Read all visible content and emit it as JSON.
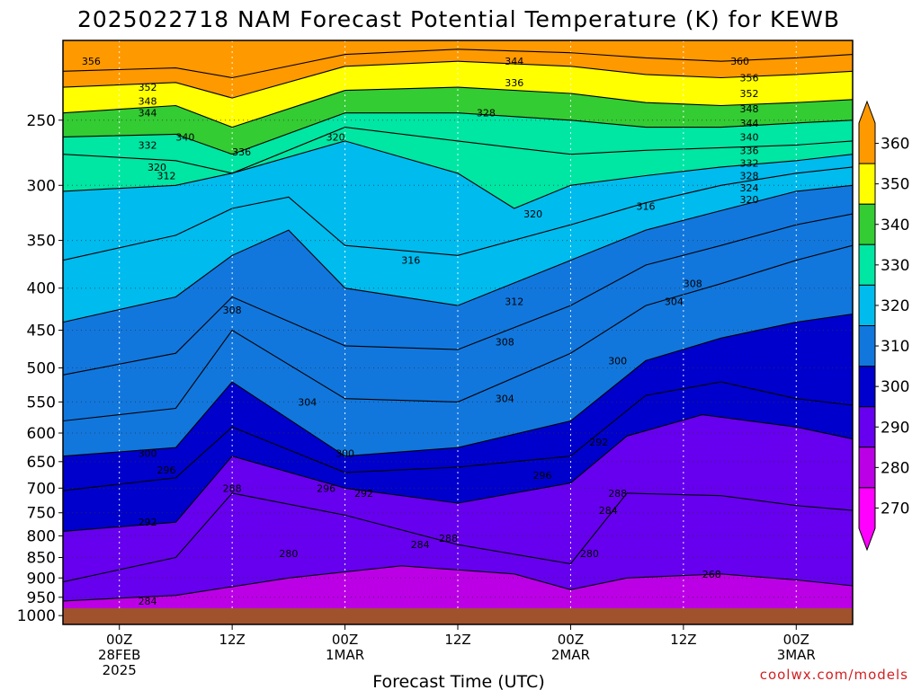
{
  "chart_data": {
    "type": "heatmap",
    "title": "2025022718 NAM Forecast Potential Temperature (K) for KEWB",
    "xlabel": "Forecast Time (UTC)",
    "ylabel": "",
    "credit": "coolwx.com/models",
    "y_axis": {
      "scale": "pressure",
      "orientation": "reversed",
      "ticks": [
        250,
        300,
        350,
        400,
        450,
        500,
        550,
        600,
        650,
        700,
        750,
        800,
        850,
        900,
        950,
        1000
      ],
      "ylim": [
        1025,
        200
      ],
      "grid": true
    },
    "x_axis": {
      "xlim_hours": [
        -6,
        78
      ],
      "ticks": [
        {
          "hour": 0,
          "lines": [
            "00Z",
            "28FEB",
            "2025"
          ]
        },
        {
          "hour": 12,
          "lines": [
            "12Z"
          ]
        },
        {
          "hour": 24,
          "lines": [
            "00Z",
            "1MAR"
          ]
        },
        {
          "hour": 36,
          "lines": [
            "12Z"
          ]
        },
        {
          "hour": 48,
          "lines": [
            "00Z",
            "2MAR"
          ]
        },
        {
          "hour": 60,
          "lines": [
            "12Z"
          ]
        },
        {
          "hour": 72,
          "lines": [
            "00Z",
            "3MAR"
          ]
        }
      ],
      "grid": true
    },
    "colorbar": {
      "labels": [
        "360",
        "350",
        "340",
        "330",
        "320",
        "310",
        "300",
        "290",
        "280",
        "270"
      ],
      "bands": [
        {
          "range": [
            350,
            360
          ],
          "color": "#ff9900"
        },
        {
          "range": [
            340,
            350
          ],
          "color": "#ffff00"
        },
        {
          "range": [
            330,
            340
          ],
          "color": "#33cc33"
        },
        {
          "range": [
            320,
            330
          ],
          "color": "#00e6a3"
        },
        {
          "range": [
            310,
            320
          ],
          "color": "#00bbee"
        },
        {
          "range": [
            300,
            310
          ],
          "color": "#1177dd"
        },
        {
          "range": [
            290,
            300
          ],
          "color": "#0000cc"
        },
        {
          "range": [
            280,
            290
          ],
          "color": "#6600ee"
        },
        {
          "range": [
            270,
            280
          ],
          "color": "#bb00e6"
        },
        {
          "range": [
            260,
            270
          ],
          "color": "#ff00ff"
        }
      ]
    },
    "isentropes": [
      {
        "theta": 284,
        "points": [
          [
            -6,
            960
          ],
          [
            6,
            945
          ],
          [
            18,
            900
          ],
          [
            30,
            870
          ],
          [
            42,
            890
          ],
          [
            48,
            930
          ],
          [
            54,
            900
          ],
          [
            64,
            890
          ],
          [
            72,
            905
          ],
          [
            78,
            920
          ]
        ]
      },
      {
        "theta": 288,
        "points": [
          [
            -6,
            910
          ],
          [
            6,
            850
          ],
          [
            12,
            710
          ],
          [
            24,
            755
          ],
          [
            36,
            820
          ],
          [
            48,
            865
          ],
          [
            54,
            710
          ],
          [
            64,
            715
          ],
          [
            72,
            735
          ],
          [
            78,
            745
          ]
        ]
      },
      {
        "theta": 292,
        "points": [
          [
            -6,
            790
          ],
          [
            6,
            770
          ],
          [
            12,
            640
          ],
          [
            24,
            700
          ],
          [
            36,
            730
          ],
          [
            48,
            690
          ],
          [
            54,
            605
          ],
          [
            62,
            570
          ],
          [
            72,
            590
          ],
          [
            78,
            610
          ]
        ]
      },
      {
        "theta": 296,
        "points": [
          [
            -6,
            705
          ],
          [
            6,
            680
          ],
          [
            12,
            590
          ],
          [
            24,
            670
          ],
          [
            36,
            660
          ],
          [
            48,
            640
          ],
          [
            56,
            540
          ],
          [
            64,
            520
          ],
          [
            72,
            545
          ],
          [
            78,
            555
          ]
        ]
      },
      {
        "theta": 300,
        "points": [
          [
            -6,
            640
          ],
          [
            6,
            625
          ],
          [
            12,
            520
          ],
          [
            24,
            640
          ],
          [
            36,
            625
          ],
          [
            48,
            580
          ],
          [
            56,
            490
          ],
          [
            64,
            460
          ],
          [
            72,
            440
          ],
          [
            78,
            430
          ]
        ]
      },
      {
        "theta": 304,
        "points": [
          [
            -6,
            580
          ],
          [
            6,
            560
          ],
          [
            12,
            450
          ],
          [
            24,
            545
          ],
          [
            36,
            550
          ],
          [
            48,
            480
          ],
          [
            56,
            420
          ],
          [
            64,
            395
          ],
          [
            72,
            370
          ],
          [
            78,
            355
          ]
        ]
      },
      {
        "theta": 308,
        "points": [
          [
            -6,
            510
          ],
          [
            6,
            480
          ],
          [
            12,
            410
          ],
          [
            24,
            470
          ],
          [
            36,
            475
          ],
          [
            48,
            420
          ],
          [
            56,
            375
          ],
          [
            64,
            355
          ],
          [
            72,
            335
          ],
          [
            78,
            325
          ]
        ]
      },
      {
        "theta": 312,
        "points": [
          [
            -6,
            440
          ],
          [
            6,
            410
          ],
          [
            12,
            365
          ],
          [
            18,
            340
          ],
          [
            24,
            400
          ],
          [
            36,
            420
          ],
          [
            48,
            370
          ],
          [
            56,
            340
          ],
          [
            64,
            322
          ],
          [
            72,
            305
          ],
          [
            78,
            300
          ]
        ]
      },
      {
        "theta": 316,
        "points": [
          [
            -6,
            370
          ],
          [
            6,
            345
          ],
          [
            12,
            320
          ],
          [
            18,
            310
          ],
          [
            24,
            355
          ],
          [
            36,
            365
          ],
          [
            48,
            335
          ],
          [
            56,
            315
          ],
          [
            64,
            300
          ],
          [
            72,
            290
          ],
          [
            78,
            285
          ]
        ]
      },
      {
        "theta": 320,
        "points": [
          [
            -6,
            305
          ],
          [
            6,
            300
          ],
          [
            12,
            290
          ],
          [
            24,
            265
          ],
          [
            36,
            290
          ],
          [
            42,
            320
          ],
          [
            48,
            300
          ],
          [
            56,
            292
          ],
          [
            64,
            285
          ],
          [
            72,
            280
          ],
          [
            78,
            275
          ]
        ]
      },
      {
        "theta": 328,
        "points": [
          [
            -6,
            275
          ],
          [
            6,
            280
          ],
          [
            12,
            290
          ],
          [
            24,
            255
          ],
          [
            36,
            265
          ],
          [
            42,
            270
          ],
          [
            48,
            275
          ],
          [
            56,
            272
          ],
          [
            64,
            270
          ],
          [
            72,
            268
          ],
          [
            78,
            265
          ]
        ]
      },
      {
        "theta": 336,
        "points": [
          [
            -6,
            262
          ],
          [
            6,
            260
          ],
          [
            12,
            275
          ],
          [
            24,
            245
          ],
          [
            36,
            245
          ],
          [
            48,
            250
          ],
          [
            56,
            255
          ],
          [
            64,
            255
          ],
          [
            72,
            252
          ],
          [
            78,
            250
          ]
        ]
      },
      {
        "theta": 344,
        "points": [
          [
            -6,
            245
          ],
          [
            6,
            240
          ],
          [
            12,
            255
          ],
          [
            24,
            230
          ],
          [
            36,
            228
          ],
          [
            48,
            232
          ],
          [
            56,
            238
          ],
          [
            64,
            240
          ],
          [
            72,
            238
          ],
          [
            78,
            236
          ]
        ]
      },
      {
        "theta": 352,
        "points": [
          [
            -6,
            228
          ],
          [
            6,
            225
          ],
          [
            12,
            235
          ],
          [
            24,
            215
          ],
          [
            36,
            212
          ],
          [
            48,
            215
          ],
          [
            56,
            220
          ],
          [
            64,
            222
          ],
          [
            72,
            220
          ],
          [
            78,
            218
          ]
        ]
      },
      {
        "theta": 356,
        "points": [
          [
            -6,
            218
          ],
          [
            6,
            216
          ],
          [
            12,
            222
          ],
          [
            24,
            208
          ],
          [
            36,
            205
          ],
          [
            48,
            207
          ],
          [
            56,
            210
          ],
          [
            64,
            212
          ],
          [
            72,
            210
          ],
          [
            78,
            208
          ]
        ]
      }
    ],
    "contour_labels": [
      {
        "text": "356",
        "hour": -3,
        "p": 212
      },
      {
        "text": "352",
        "hour": 3,
        "p": 228
      },
      {
        "text": "348",
        "hour": 3,
        "p": 237
      },
      {
        "text": "344",
        "hour": 3,
        "p": 245
      },
      {
        "text": "340",
        "hour": 7,
        "p": 262
      },
      {
        "text": "332",
        "hour": 3,
        "p": 268
      },
      {
        "text": "336",
        "hour": 13,
        "p": 273
      },
      {
        "text": "320",
        "hour": 4,
        "p": 285
      },
      {
        "text": "312",
        "hour": 5,
        "p": 292
      },
      {
        "text": "320",
        "hour": 23,
        "p": 262
      },
      {
        "text": "344",
        "hour": 42,
        "p": 212
      },
      {
        "text": "336",
        "hour": 42,
        "p": 225
      },
      {
        "text": "328",
        "hour": 39,
        "p": 245
      },
      {
        "text": "320",
        "hour": 44,
        "p": 325
      },
      {
        "text": "316",
        "hour": 31,
        "p": 370
      },
      {
        "text": "312",
        "hour": 42,
        "p": 415
      },
      {
        "text": "308",
        "hour": 41,
        "p": 465
      },
      {
        "text": "304",
        "hour": 41,
        "p": 545
      },
      {
        "text": "304",
        "hour": 20,
        "p": 550
      },
      {
        "text": "308",
        "hour": 12,
        "p": 425
      },
      {
        "text": "300",
        "hour": 3,
        "p": 635
      },
      {
        "text": "296",
        "hour": 5,
        "p": 665
      },
      {
        "text": "300",
        "hour": 24,
        "p": 635
      },
      {
        "text": "296",
        "hour": 22,
        "p": 700
      },
      {
        "text": "292",
        "hour": 26,
        "p": 710
      },
      {
        "text": "296",
        "hour": 45,
        "p": 675
      },
      {
        "text": "292",
        "hour": 51,
        "p": 615
      },
      {
        "text": "288",
        "hour": 12,
        "p": 700
      },
      {
        "text": "292",
        "hour": 3,
        "p": 770
      },
      {
        "text": "284",
        "hour": 32,
        "p": 820
      },
      {
        "text": "288",
        "hour": 35,
        "p": 805
      },
      {
        "text": "280",
        "hour": 18,
        "p": 840
      },
      {
        "text": "284",
        "hour": 3,
        "p": 960
      },
      {
        "text": "280",
        "hour": 50,
        "p": 840
      },
      {
        "text": "288",
        "hour": 53,
        "p": 710
      },
      {
        "text": "284",
        "hour": 52,
        "p": 745
      },
      {
        "text": "268",
        "hour": 63,
        "p": 890
      },
      {
        "text": "304",
        "hour": 59,
        "p": 415
      },
      {
        "text": "308",
        "hour": 61,
        "p": 395
      },
      {
        "text": "316",
        "hour": 56,
        "p": 318
      },
      {
        "text": "300",
        "hour": 53,
        "p": 490
      },
      {
        "text": "360",
        "hour": 66,
        "p": 212
      },
      {
        "text": "356",
        "hour": 67,
        "p": 222
      },
      {
        "text": "352",
        "hour": 67,
        "p": 232
      },
      {
        "text": "348",
        "hour": 67,
        "p": 242
      },
      {
        "text": "344",
        "hour": 67,
        "p": 252
      },
      {
        "text": "340",
        "hour": 67,
        "p": 262
      },
      {
        "text": "336",
        "hour": 67,
        "p": 272
      },
      {
        "text": "332",
        "hour": 67,
        "p": 282
      },
      {
        "text": "328",
        "hour": 67,
        "p": 292
      },
      {
        "text": "324",
        "hour": 67,
        "p": 302
      },
      {
        "text": "320",
        "hour": 67,
        "p": 312
      }
    ]
  }
}
